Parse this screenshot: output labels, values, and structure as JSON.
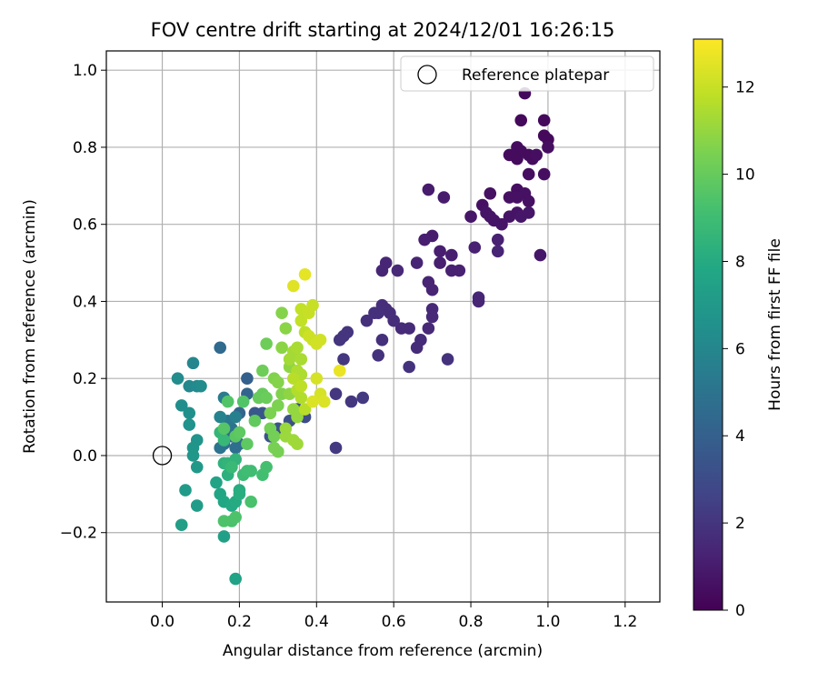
{
  "chart_data": {
    "type": "scatter",
    "title": "FOV centre drift starting at 2024/12/01 16:26:15",
    "xlabel": "Angular distance from reference (arcmin)",
    "ylabel": "Rotation from reference (arcmin)",
    "xlim": [
      -0.145,
      1.29
    ],
    "ylim": [
      -0.38,
      1.05
    ],
    "xticks": [
      0.0,
      0.2,
      0.4,
      0.6,
      0.8,
      1.0,
      1.2
    ],
    "xtick_labels": [
      "0.0",
      "0.2",
      "0.4",
      "0.6",
      "0.8",
      "1.0",
      "1.2"
    ],
    "yticks": [
      -0.2,
      0.0,
      0.2,
      0.4,
      0.6,
      0.8,
      1.0
    ],
    "ytick_labels": [
      "−0.2",
      "0.0",
      "0.2",
      "0.4",
      "0.6",
      "0.8",
      "1.0"
    ],
    "grid": true,
    "legend": {
      "placement": "top-right",
      "entries": [
        "Reference platepar"
      ]
    },
    "reference_point": {
      "name": "Reference platepar",
      "x": 0.0,
      "y": 0.0
    },
    "colorbar": {
      "label": "Hours from first FF file",
      "colormap": "viridis",
      "range": [
        0,
        13.1
      ],
      "ticks": [
        0,
        2,
        4,
        6,
        8,
        10,
        12
      ],
      "tick_labels": [
        "0",
        "2",
        "4",
        "6",
        "8",
        "10",
        "12"
      ]
    },
    "points": [
      [
        0.94,
        0.94,
        0.3
      ],
      [
        0.93,
        0.87,
        0.3
      ],
      [
        0.99,
        0.87,
        0.3
      ],
      [
        0.99,
        0.83,
        0.3
      ],
      [
        1.0,
        0.82,
        0.3
      ],
      [
        0.9,
        0.78,
        0.4
      ],
      [
        0.92,
        0.8,
        0.4
      ],
      [
        0.93,
        0.79,
        0.4
      ],
      [
        0.95,
        0.78,
        0.4
      ],
      [
        0.96,
        0.77,
        0.4
      ],
      [
        0.92,
        0.77,
        0.4
      ],
      [
        0.97,
        0.78,
        0.5
      ],
      [
        1.0,
        0.8,
        0.5
      ],
      [
        0.95,
        0.73,
        0.5
      ],
      [
        0.99,
        0.73,
        0.5
      ],
      [
        0.92,
        0.69,
        0.5
      ],
      [
        0.94,
        0.68,
        0.6
      ],
      [
        0.92,
        0.67,
        0.6
      ],
      [
        0.9,
        0.67,
        0.6
      ],
      [
        0.95,
        0.66,
        0.6
      ],
      [
        0.83,
        0.65,
        0.6
      ],
      [
        0.85,
        0.68,
        0.6
      ],
      [
        0.84,
        0.63,
        0.7
      ],
      [
        0.85,
        0.62,
        0.7
      ],
      [
        0.86,
        0.61,
        0.7
      ],
      [
        0.88,
        0.6,
        0.7
      ],
      [
        0.9,
        0.62,
        0.7
      ],
      [
        0.92,
        0.63,
        0.7
      ],
      [
        0.93,
        0.62,
        0.8
      ],
      [
        0.95,
        0.63,
        0.8
      ],
      [
        0.8,
        0.62,
        0.8
      ],
      [
        0.98,
        0.52,
        0.8
      ],
      [
        0.69,
        0.69,
        1.0
      ],
      [
        0.73,
        0.67,
        1.0
      ],
      [
        0.7,
        0.57,
        1.0
      ],
      [
        0.68,
        0.56,
        1.1
      ],
      [
        0.72,
        0.53,
        1.1
      ],
      [
        0.75,
        0.52,
        1.1
      ],
      [
        0.72,
        0.5,
        1.1
      ],
      [
        0.75,
        0.48,
        1.2
      ],
      [
        0.77,
        0.48,
        1.2
      ],
      [
        0.81,
        0.54,
        1.2
      ],
      [
        0.87,
        0.56,
        1.2
      ],
      [
        0.87,
        0.53,
        1.3
      ],
      [
        0.66,
        0.5,
        1.3
      ],
      [
        0.69,
        0.45,
        1.3
      ],
      [
        0.7,
        0.43,
        1.3
      ],
      [
        0.82,
        0.41,
        1.4
      ],
      [
        0.82,
        0.4,
        1.4
      ],
      [
        0.58,
        0.5,
        1.4
      ],
      [
        0.57,
        0.48,
        1.4
      ],
      [
        0.61,
        0.48,
        1.5
      ],
      [
        0.7,
        0.38,
        1.5
      ],
      [
        0.7,
        0.36,
        1.5
      ],
      [
        0.69,
        0.33,
        1.5
      ],
      [
        0.67,
        0.3,
        1.6
      ],
      [
        0.66,
        0.28,
        1.6
      ],
      [
        0.64,
        0.33,
        1.6
      ],
      [
        0.62,
        0.33,
        1.6
      ],
      [
        0.6,
        0.35,
        1.7
      ],
      [
        0.59,
        0.37,
        1.7
      ],
      [
        0.58,
        0.38,
        1.7
      ],
      [
        0.57,
        0.39,
        1.7
      ],
      [
        0.56,
        0.37,
        1.8
      ],
      [
        0.55,
        0.37,
        1.8
      ],
      [
        0.53,
        0.35,
        1.8
      ],
      [
        0.57,
        0.3,
        1.8
      ],
      [
        0.56,
        0.26,
        1.9
      ],
      [
        0.64,
        0.23,
        1.9
      ],
      [
        0.74,
        0.25,
        1.9
      ],
      [
        0.48,
        0.32,
        2.0
      ],
      [
        0.47,
        0.31,
        2.0
      ],
      [
        0.46,
        0.3,
        2.0
      ],
      [
        0.47,
        0.25,
        2.1
      ],
      [
        0.45,
        0.16,
        2.1
      ],
      [
        0.49,
        0.14,
        2.1
      ],
      [
        0.52,
        0.15,
        2.2
      ],
      [
        0.45,
        0.02,
        2.2
      ],
      [
        0.37,
        0.1,
        3.0
      ],
      [
        0.35,
        0.12,
        3.1
      ],
      [
        0.33,
        0.09,
        3.2
      ],
      [
        0.3,
        0.07,
        3.3
      ],
      [
        0.28,
        0.05,
        3.4
      ],
      [
        0.26,
        0.11,
        3.5
      ],
      [
        0.24,
        0.11,
        3.6
      ],
      [
        0.22,
        0.2,
        4.0
      ],
      [
        0.22,
        0.16,
        4.2
      ],
      [
        0.15,
        0.28,
        4.5
      ],
      [
        0.2,
        0.11,
        4.3
      ],
      [
        0.18,
        0.05,
        4.4
      ],
      [
        0.2,
        0.03,
        4.6
      ],
      [
        0.19,
        0.02,
        4.7
      ],
      [
        0.16,
        0.03,
        4.8
      ],
      [
        0.18,
        0.07,
        4.9
      ],
      [
        0.15,
        0.02,
        5.0
      ],
      [
        0.17,
        0.09,
        5.2
      ],
      [
        0.16,
        0.15,
        5.4
      ],
      [
        0.19,
        0.1,
        5.6
      ],
      [
        0.15,
        0.1,
        5.8
      ],
      [
        0.08,
        0.24,
        6.0
      ],
      [
        0.07,
        0.18,
        6.1
      ],
      [
        0.09,
        0.18,
        6.2
      ],
      [
        0.1,
        0.18,
        6.3
      ],
      [
        0.04,
        0.2,
        6.3
      ],
      [
        0.05,
        0.13,
        6.4
      ],
      [
        0.07,
        0.11,
        6.5
      ],
      [
        0.07,
        0.08,
        6.6
      ],
      [
        0.09,
        0.04,
        6.7
      ],
      [
        0.08,
        0.02,
        6.8
      ],
      [
        0.08,
        0.0,
        6.9
      ],
      [
        0.09,
        -0.03,
        7.0
      ],
      [
        0.06,
        -0.09,
        7.1
      ],
      [
        0.09,
        -0.13,
        7.2
      ],
      [
        0.05,
        -0.18,
        7.3
      ],
      [
        0.16,
        -0.21,
        7.4
      ],
      [
        0.19,
        -0.32,
        7.5
      ],
      [
        0.14,
        -0.07,
        7.6
      ],
      [
        0.15,
        -0.1,
        7.7
      ],
      [
        0.16,
        -0.12,
        7.8
      ],
      [
        0.18,
        -0.13,
        7.9
      ],
      [
        0.19,
        -0.12,
        8.0
      ],
      [
        0.2,
        -0.09,
        8.1
      ],
      [
        0.2,
        -0.1,
        8.2
      ],
      [
        0.17,
        -0.05,
        8.3
      ],
      [
        0.16,
        -0.02,
        8.4
      ],
      [
        0.17,
        -0.02,
        8.5
      ],
      [
        0.19,
        -0.01,
        8.5
      ],
      [
        0.15,
        0.06,
        8.6
      ],
      [
        0.16,
        0.04,
        8.7
      ],
      [
        0.18,
        -0.03,
        8.8
      ],
      [
        0.21,
        -0.05,
        8.9
      ],
      [
        0.22,
        -0.04,
        9.0
      ],
      [
        0.23,
        -0.04,
        9.0
      ],
      [
        0.26,
        -0.05,
        9.1
      ],
      [
        0.27,
        -0.03,
        9.2
      ],
      [
        0.23,
        -0.12,
        9.3
      ],
      [
        0.18,
        -0.17,
        9.3
      ],
      [
        0.16,
        -0.17,
        9.4
      ],
      [
        0.19,
        -0.16,
        9.4
      ],
      [
        0.17,
        0.14,
        9.5
      ],
      [
        0.21,
        0.14,
        9.5
      ],
      [
        0.16,
        0.07,
        9.6
      ],
      [
        0.19,
        0.05,
        9.7
      ],
      [
        0.2,
        0.06,
        9.8
      ],
      [
        0.22,
        0.03,
        9.8
      ],
      [
        0.24,
        0.09,
        9.9
      ],
      [
        0.25,
        0.15,
        10.0
      ],
      [
        0.26,
        0.16,
        10.0
      ],
      [
        0.27,
        0.15,
        10.1
      ],
      [
        0.26,
        0.22,
        10.2
      ],
      [
        0.27,
        0.29,
        10.2
      ],
      [
        0.28,
        0.07,
        10.3
      ],
      [
        0.29,
        0.05,
        10.3
      ],
      [
        0.29,
        0.02,
        10.4
      ],
      [
        0.3,
        0.01,
        10.4
      ],
      [
        0.28,
        0.11,
        10.5
      ],
      [
        0.3,
        0.13,
        10.5
      ],
      [
        0.31,
        0.16,
        10.6
      ],
      [
        0.29,
        0.2,
        10.6
      ],
      [
        0.3,
        0.19,
        10.7
      ],
      [
        0.31,
        0.37,
        10.7
      ],
      [
        0.32,
        0.33,
        10.8
      ],
      [
        0.31,
        0.28,
        10.8
      ],
      [
        0.33,
        0.23,
        10.9
      ],
      [
        0.33,
        0.16,
        10.9
      ],
      [
        0.34,
        0.12,
        11.0
      ],
      [
        0.35,
        0.1,
        11.0
      ],
      [
        0.32,
        0.07,
        11.1
      ],
      [
        0.32,
        0.05,
        11.1
      ],
      [
        0.34,
        0.04,
        11.2
      ],
      [
        0.35,
        0.03,
        11.2
      ],
      [
        0.33,
        0.25,
        11.3
      ],
      [
        0.34,
        0.27,
        11.3
      ],
      [
        0.35,
        0.28,
        11.4
      ],
      [
        0.36,
        0.25,
        11.4
      ],
      [
        0.35,
        0.22,
        11.5
      ],
      [
        0.36,
        0.21,
        11.5
      ],
      [
        0.35,
        0.17,
        11.6
      ],
      [
        0.36,
        0.15,
        11.6
      ],
      [
        0.37,
        0.12,
        11.7
      ],
      [
        0.34,
        0.2,
        11.7
      ],
      [
        0.36,
        0.18,
        11.8
      ],
      [
        0.37,
        0.32,
        11.8
      ],
      [
        0.36,
        0.35,
        11.9
      ],
      [
        0.36,
        0.38,
        11.9
      ],
      [
        0.38,
        0.37,
        12.0
      ],
      [
        0.39,
        0.39,
        12.0
      ],
      [
        0.38,
        0.31,
        12.1
      ],
      [
        0.39,
        0.3,
        12.1
      ],
      [
        0.4,
        0.29,
        12.2
      ],
      [
        0.41,
        0.3,
        12.2
      ],
      [
        0.4,
        0.2,
        12.3
      ],
      [
        0.41,
        0.16,
        12.3
      ],
      [
        0.39,
        0.14,
        12.4
      ],
      [
        0.42,
        0.14,
        12.4
      ],
      [
        0.34,
        0.44,
        12.5
      ],
      [
        0.37,
        0.47,
        12.6
      ],
      [
        0.46,
        0.22,
        12.7
      ]
    ]
  }
}
